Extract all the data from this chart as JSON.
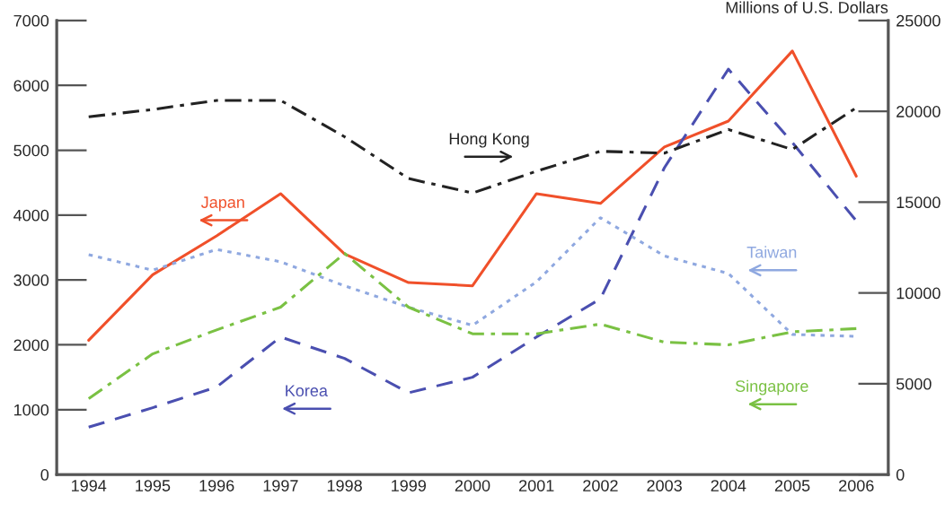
{
  "chart_data": {
    "type": "line",
    "y2label": "Millions of U.S. Dollars",
    "categories": [
      "1994",
      "1995",
      "1996",
      "1997",
      "1998",
      "1999",
      "2000",
      "2001",
      "2002",
      "2003",
      "2004",
      "2005",
      "2006"
    ],
    "series": [
      {
        "name": "Japan",
        "color": "#f0502a",
        "line_style": "solid",
        "axis": "y",
        "values": [
          2070,
          3080,
          3680,
          4330,
          3400,
          2960,
          2910,
          4330,
          4180,
          5050,
          5450,
          6530,
          4600
        ]
      },
      {
        "name": "Korea",
        "color": "#4a4fb0",
        "line_style": "dashed",
        "axis": "y",
        "values": [
          730,
          1030,
          1350,
          2120,
          1790,
          1260,
          1500,
          2120,
          2710,
          4730,
          6250,
          5120,
          3910
        ]
      },
      {
        "name": "Taiwan",
        "color": "#8fa8e0",
        "line_style": "dotted",
        "axis": "y",
        "values": [
          3390,
          3150,
          3470,
          3280,
          2910,
          2580,
          2300,
          2970,
          3960,
          3370,
          3100,
          2160,
          2130
        ]
      },
      {
        "name": "Singapore",
        "color": "#7ac143",
        "line_style": "dashdot",
        "axis": "y",
        "values": [
          1170,
          1860,
          2230,
          2580,
          3410,
          2580,
          2170,
          2170,
          2320,
          2040,
          2000,
          2200,
          2250
        ]
      },
      {
        "name": "Hong Kong",
        "color": "#222222",
        "line_style": "dashdot",
        "axis": "y2",
        "values": [
          19700,
          20100,
          20600,
          20600,
          18600,
          16300,
          15500,
          16700,
          17800,
          17700,
          19000,
          17900,
          20200
        ]
      }
    ],
    "ylim": [
      0,
      7000
    ],
    "yticks": [
      0,
      1000,
      2000,
      3000,
      4000,
      5000,
      6000,
      7000
    ],
    "y2lim": [
      0,
      25000
    ],
    "y2ticks": [
      0,
      5000,
      10000,
      15000,
      20000,
      25000
    ],
    "grid": false,
    "legend": false,
    "marker": "none"
  }
}
